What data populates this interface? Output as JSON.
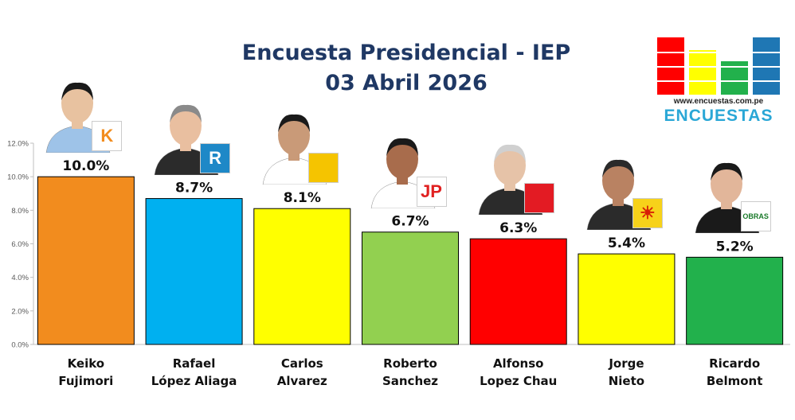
{
  "title": "Encuesta Presidencial - IEP",
  "subtitle": "03 Abril 2026",
  "logo": {
    "url": "www.encuestas.com.pe",
    "word": "ENCUESTAS",
    "bars": [
      "#ff0000",
      "#ffff00",
      "#22b14c",
      "#1f77b4"
    ]
  },
  "chart_data": {
    "type": "bar",
    "title": "Encuesta Presidencial - IEP",
    "subtitle": "03 Abril 2026",
    "categories": [
      "Keiko Fujimori",
      "Rafael López Aliaga",
      "Carlos Alvarez",
      "Roberto Sanchez",
      "Alfonso Lopez Chau",
      "Jorge Nieto",
      "Ricardo Belmont"
    ],
    "category_lines": [
      [
        "Keiko",
        "Fujimori"
      ],
      [
        "Rafael",
        "López Aliaga"
      ],
      [
        "Carlos",
        "Alvarez"
      ],
      [
        "Roberto",
        "Sanchez"
      ],
      [
        "Alfonso",
        "Lopez Chau"
      ],
      [
        "Jorge",
        "Nieto"
      ],
      [
        "Ricardo",
        "Belmont"
      ]
    ],
    "values": [
      10.0,
      8.7,
      8.1,
      6.7,
      6.3,
      5.4,
      5.2
    ],
    "value_labels": [
      "10.0%",
      "8.7%",
      "8.1%",
      "6.7%",
      "6.3%",
      "5.4%",
      "5.2%"
    ],
    "colors": [
      "#f28c1e",
      "#00b0f0",
      "#ffff00",
      "#92d050",
      "#ff0000",
      "#ffff00",
      "#22b14c"
    ],
    "ylim": [
      0,
      12
    ],
    "yticks": [
      0,
      2,
      4,
      6,
      8,
      10,
      12
    ],
    "ytick_labels": [
      "0.0%",
      "2.0%",
      "4.0%",
      "6.0%",
      "8.0%",
      "10.0%",
      "12.0%"
    ],
    "grid": false,
    "legend": "none",
    "party_marks": [
      {
        "text": "K",
        "bg": "#ffffff",
        "fg": "#f28c1e"
      },
      {
        "text": "R",
        "bg": "#1e88c7",
        "fg": "#ffffff"
      },
      {
        "text": "",
        "bg": "#f5c400",
        "fg": "#111111"
      },
      {
        "text": "JP",
        "bg": "#ffffff",
        "fg": "#e02020"
      },
      {
        "text": "",
        "bg": "#e31b23",
        "fg": "#ffffff"
      },
      {
        "text": "☀",
        "bg": "#f7d21a",
        "fg": "#d81e05"
      },
      {
        "text": "OBRAS",
        "bg": "#ffffff",
        "fg": "#1a7a2a"
      }
    ]
  }
}
